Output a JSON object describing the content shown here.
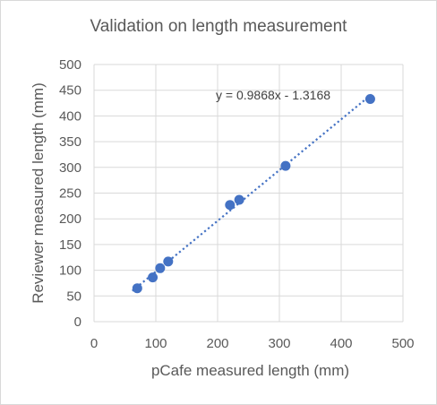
{
  "chart_data": {
    "type": "scatter",
    "title": "Validation on length measurement",
    "xlabel": "pCafe measured length (mm)",
    "ylabel": "Reviewer measured length (mm)",
    "xlim": [
      0,
      500
    ],
    "ylim": [
      0,
      500
    ],
    "xticks": [
      0,
      100,
      200,
      300,
      400,
      500
    ],
    "yticks": [
      0,
      50,
      100,
      150,
      200,
      250,
      300,
      350,
      400,
      450,
      500
    ],
    "grid": true,
    "legend": "none",
    "series": [
      {
        "color": "#4472C4",
        "points": [
          {
            "x": 70,
            "y": 65
          },
          {
            "x": 95,
            "y": 86
          },
          {
            "x": 107,
            "y": 104
          },
          {
            "x": 120,
            "y": 117
          },
          {
            "x": 220,
            "y": 227
          },
          {
            "x": 235,
            "y": 237
          },
          {
            "x": 310,
            "y": 303
          },
          {
            "x": 447,
            "y": 433
          }
        ]
      }
    ],
    "trendline": {
      "type": "linear",
      "slope": 0.9868,
      "intercept": -1.3168,
      "x_range": [
        70,
        447
      ],
      "style": "dotted",
      "color": "#4472C4",
      "equation_label": "y = 0.9868x - 1.3168"
    },
    "colors": {
      "gridline": "#d9d9d9",
      "text": "#595959"
    }
  }
}
